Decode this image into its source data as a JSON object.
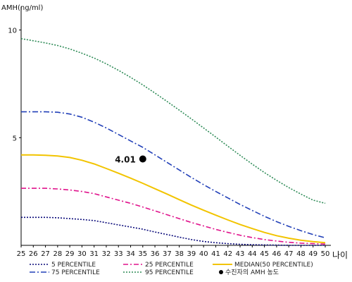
{
  "chart_data": {
    "type": "line",
    "ylabel": "AMH(ng/ml)",
    "xlabel": "나이",
    "xlim": [
      25,
      50
    ],
    "ylim": [
      0,
      11
    ],
    "yticks": [
      5,
      10
    ],
    "x": [
      25,
      26,
      27,
      28,
      29,
      30,
      31,
      32,
      33,
      34,
      35,
      36,
      37,
      38,
      39,
      40,
      41,
      42,
      43,
      44,
      45,
      46,
      47,
      48,
      49,
      50
    ],
    "series": [
      {
        "name": "5 PERCENTILE",
        "color": "#0a0a7a",
        "dash": "2,2",
        "values": [
          1.3,
          1.3,
          1.3,
          1.28,
          1.24,
          1.2,
          1.15,
          1.05,
          0.95,
          0.85,
          0.75,
          0.62,
          0.5,
          0.38,
          0.27,
          0.18,
          0.12,
          0.08,
          0.05,
          0.03,
          0.02,
          0.01,
          0.0,
          0.0,
          0.0,
          0.0
        ]
      },
      {
        "name": "25 PERCENTILE",
        "color": "#e0138c",
        "dash": "7,3,2,3",
        "values": [
          2.65,
          2.65,
          2.65,
          2.62,
          2.57,
          2.5,
          2.4,
          2.25,
          2.1,
          1.95,
          1.78,
          1.6,
          1.42,
          1.24,
          1.06,
          0.9,
          0.74,
          0.6,
          0.47,
          0.36,
          0.27,
          0.2,
          0.14,
          0.1,
          0.08,
          0.06
        ]
      },
      {
        "name": "MEDIAN(50 PERCENTILE)",
        "color": "#f2c400",
        "dash": "",
        "values": [
          4.2,
          4.2,
          4.18,
          4.15,
          4.08,
          3.95,
          3.78,
          3.57,
          3.35,
          3.12,
          2.88,
          2.63,
          2.38,
          2.12,
          1.87,
          1.63,
          1.4,
          1.18,
          0.97,
          0.78,
          0.6,
          0.45,
          0.33,
          0.24,
          0.17,
          0.12
        ]
      },
      {
        "name": "75 PERCENTILE",
        "color": "#2240b8",
        "dash": "8,3,2,3",
        "values": [
          6.2,
          6.2,
          6.2,
          6.18,
          6.1,
          5.95,
          5.72,
          5.45,
          5.15,
          4.85,
          4.55,
          4.2,
          3.85,
          3.5,
          3.15,
          2.82,
          2.5,
          2.2,
          1.9,
          1.62,
          1.35,
          1.1,
          0.88,
          0.68,
          0.5,
          0.35
        ]
      },
      {
        "name": "95 PERCENTILE",
        "color": "#2e8b57",
        "dash": "2,2",
        "values": [
          9.6,
          9.5,
          9.4,
          9.28,
          9.12,
          8.92,
          8.7,
          8.43,
          8.13,
          7.8,
          7.45,
          7.07,
          6.68,
          6.28,
          5.87,
          5.45,
          5.03,
          4.6,
          4.18,
          3.77,
          3.38,
          3.02,
          2.68,
          2.38,
          2.1,
          1.95
        ]
      }
    ],
    "highlight_point": {
      "name": "수진자의 AMH 농도",
      "x": 35,
      "y": 4.01,
      "label": "4.01"
    },
    "legend_position": "bottom",
    "grid": false
  }
}
